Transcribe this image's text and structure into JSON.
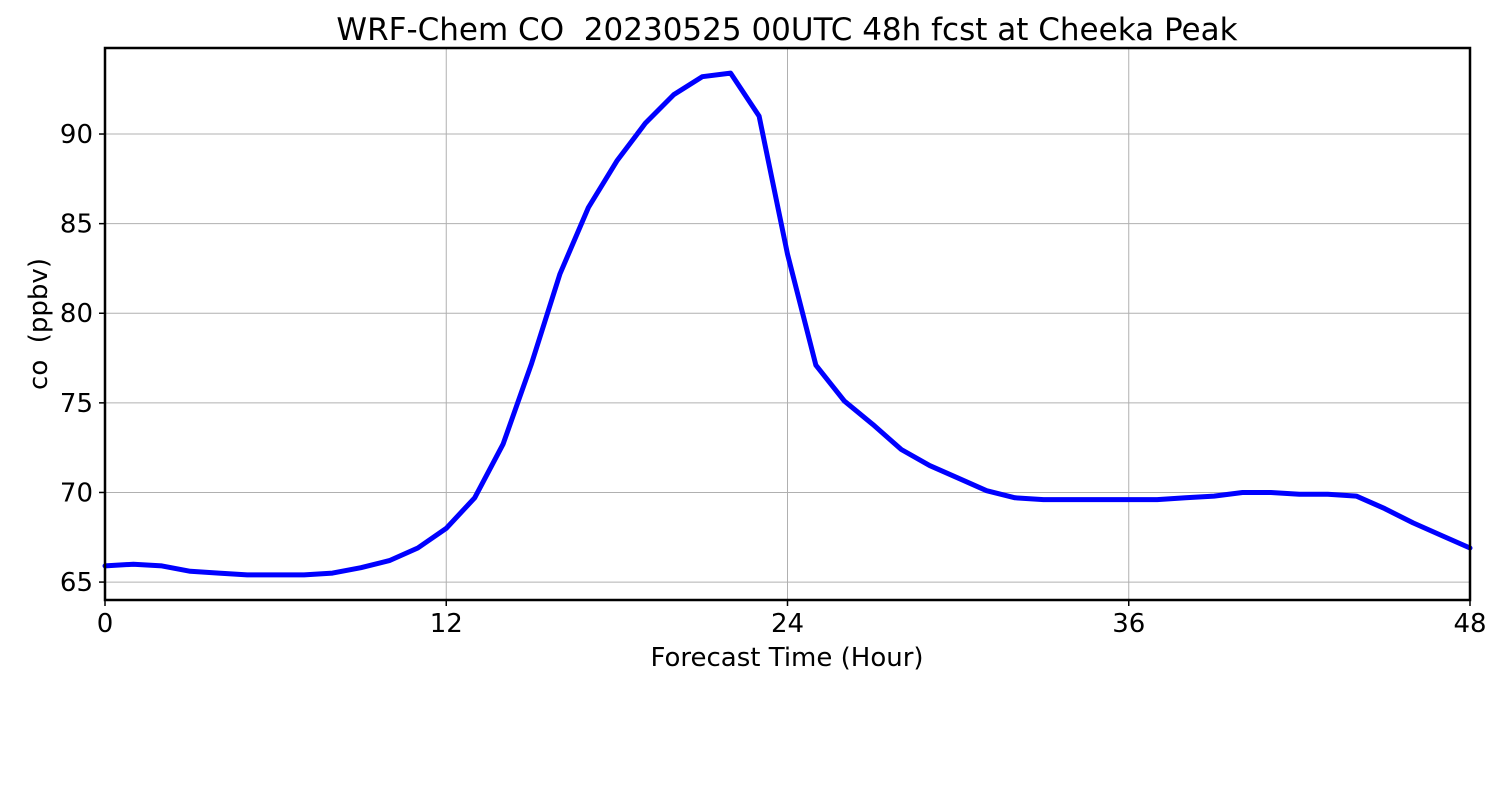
{
  "chart_data": {
    "type": "line",
    "title": "WRF-Chem CO  20230525 00UTC 48h fcst at Cheeka Peak",
    "xlabel": "Forecast Time (Hour)",
    "ylabel": "co  (ppbv)",
    "xlim": [
      0,
      48
    ],
    "ylim": [
      64,
      94.8
    ],
    "xticks": [
      0,
      12,
      24,
      36,
      48
    ],
    "yticks": [
      65,
      70,
      75,
      80,
      85,
      90
    ],
    "grid": true,
    "series": [
      {
        "color": "#0000ff",
        "x": [
          0,
          1,
          2,
          3,
          4,
          5,
          6,
          7,
          8,
          9,
          10,
          11,
          12,
          13,
          14,
          15,
          16,
          17,
          18,
          19,
          20,
          21,
          22,
          23,
          24,
          25,
          26,
          27,
          28,
          29,
          30,
          31,
          32,
          33,
          34,
          35,
          36,
          37,
          38,
          39,
          40,
          41,
          42,
          43,
          44,
          45,
          46,
          47,
          48
        ],
        "values": [
          65.9,
          66.0,
          65.9,
          65.6,
          65.5,
          65.4,
          65.4,
          65.4,
          65.5,
          65.8,
          66.2,
          66.9,
          68.0,
          69.7,
          72.7,
          77.2,
          82.2,
          85.9,
          88.5,
          90.6,
          92.2,
          93.2,
          93.4,
          91.0,
          83.3,
          77.1,
          75.1,
          73.8,
          72.4,
          71.5,
          70.8,
          70.1,
          69.7,
          69.6,
          69.6,
          69.6,
          69.6,
          69.6,
          69.7,
          69.8,
          70.0,
          70.0,
          69.9,
          69.9,
          69.8,
          69.1,
          68.3,
          67.6,
          66.9
        ]
      }
    ]
  }
}
